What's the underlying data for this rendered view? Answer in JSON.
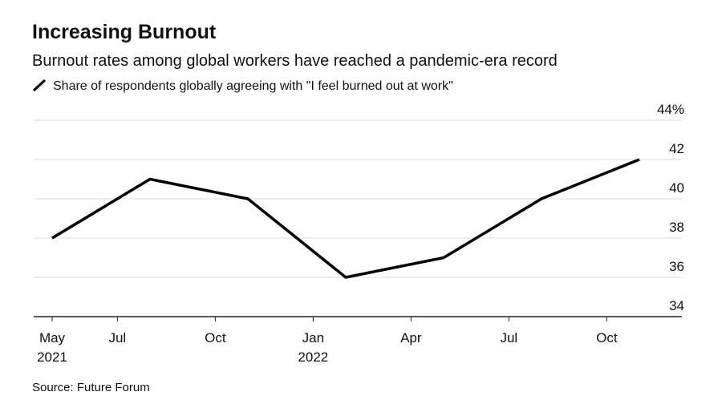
{
  "chart_data": {
    "type": "line",
    "title": "Increasing Burnout",
    "subtitle": "Burnout rates among global workers have reached a pandemic-era record",
    "source": "Source: Future Forum",
    "x": [
      "2021-05",
      "2021-08",
      "2021-11",
      "2022-02",
      "2022-05",
      "2022-08",
      "2022-11"
    ],
    "series": [
      {
        "name": "Share of respondents globally agreeing with \"I feel burned out at work\"",
        "color": "#000000",
        "values": [
          38,
          41,
          40,
          36,
          37,
          40,
          42
        ]
      }
    ],
    "xlim": [
      "2021-05",
      "2022-11"
    ],
    "xticks": [
      {
        "value": "2021-05",
        "label": "May",
        "year": "2021"
      },
      {
        "value": "2021-07",
        "label": "Jul"
      },
      {
        "value": "2021-10",
        "label": "Oct"
      },
      {
        "value": "2022-01",
        "label": "Jan",
        "year": "2022"
      },
      {
        "value": "2022-04",
        "label": "Apr"
      },
      {
        "value": "2022-07",
        "label": "Jul"
      },
      {
        "value": "2022-10",
        "label": "Oct"
      }
    ],
    "ylim": [
      34,
      44
    ],
    "yticks": [
      34,
      36,
      38,
      40,
      42,
      {
        "value": 44,
        "label": "44%"
      }
    ],
    "grid": true
  }
}
